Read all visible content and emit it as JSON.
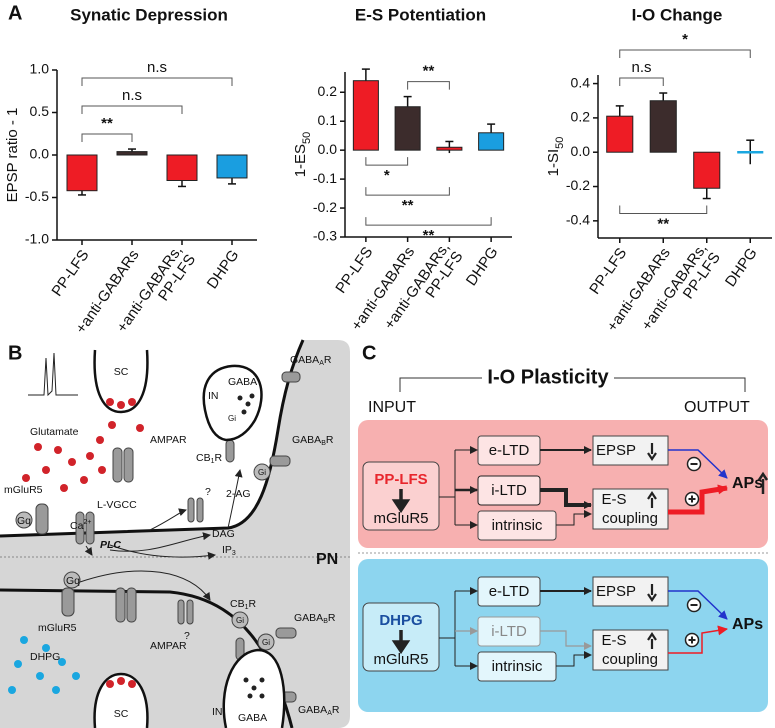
{
  "panel_labels": [
    "A",
    "B",
    "C"
  ],
  "chart_data": [
    {
      "type": "bar",
      "title": "Synatic Depression",
      "ylabel": "EPSP ratio - 1",
      "categories": [
        "PP-LFS",
        "+anti-GABARs",
        [
          "+anti-GABARs,",
          "PP-LFS"
        ],
        "DHPG"
      ],
      "values": [
        -0.42,
        0.04,
        -0.3,
        -0.27
      ],
      "errors": [
        0.05,
        0.03,
        0.07,
        0.07
      ],
      "colors": [
        "#ee1c25",
        "#3c2c2c",
        "#ee1c25",
        "#1a9ee0"
      ],
      "ylim": [
        -1,
        1
      ],
      "yticks": [
        {
          "value": -1,
          "label": "-1.0"
        },
        -0.5,
        {
          "value": 0,
          "label": "0.0"
        },
        0.5,
        {
          "value": 1,
          "label": "1.0"
        }
      ],
      "annotations": [
        {
          "from": 0,
          "to": 1,
          "label": "**",
          "side": "above"
        },
        {
          "from": 0,
          "to": 2,
          "label": "n.s",
          "side": "above"
        },
        {
          "from": 0,
          "to": 3,
          "label": "n.s",
          "side": "above"
        }
      ]
    },
    {
      "type": "bar",
      "title": "E-S Potentiation",
      "ylabel": "1-ES",
      "ylabel_subscript": "50",
      "categories": [
        "PP-LFS",
        "+anti-GABARs",
        [
          "+anti-GABARs,",
          "PP-LFS"
        ],
        "DHPG"
      ],
      "values": [
        0.24,
        0.15,
        0.01,
        0.06
      ],
      "errors": [
        0.04,
        0.035,
        0.02,
        0.03
      ],
      "colors": [
        "#ee1c25",
        "#3c2c2c",
        "#ee1c25",
        "#1a9ee0"
      ],
      "ylim": [
        -0.3,
        0.27
      ],
      "yticks": [
        -0.3,
        -0.2,
        -0.1,
        {
          "value": 0,
          "label": "0.0"
        },
        0.1,
        0.2
      ],
      "annotations": [
        {
          "from": 1,
          "to": 2,
          "label": "**",
          "side": "above"
        },
        {
          "from": 0,
          "to": 1,
          "label": "*",
          "side": "below"
        },
        {
          "from": 0,
          "to": 2,
          "label": "**",
          "side": "below"
        },
        {
          "from": 0,
          "to": 3,
          "label": "**",
          "side": "below"
        }
      ]
    },
    {
      "type": "bar",
      "title": "I-O Change",
      "ylabel": "1-SI",
      "ylabel_subscript": "50",
      "categories": [
        "PP-LFS",
        "+anti-GABARs",
        [
          "+anti-GABARs,",
          "PP-LFS"
        ],
        "DHPG"
      ],
      "values": [
        0.21,
        0.3,
        -0.21,
        0
      ],
      "errors": [
        0.06,
        0.045,
        0.06,
        0.07
      ],
      "colors": [
        "#ee1c25",
        "#3c2c2c",
        "#ee1c25",
        "#1aa7e0"
      ],
      "ylim": [
        -0.5,
        0.45
      ],
      "yticks": [
        -0.4,
        -0.2,
        {
          "value": 0,
          "label": "0.0"
        },
        0.2,
        0.4
      ],
      "annotations": [
        {
          "from": 0,
          "to": 1,
          "label": "n.s",
          "side": "above"
        },
        {
          "from": 0,
          "to": 3,
          "label": "*",
          "side": "above"
        },
        {
          "from": 0,
          "to": 2,
          "label": "**",
          "side": "below"
        }
      ]
    }
  ],
  "diagram_b": {
    "labels": [
      "SC",
      "Glutamate",
      "AMPAR",
      "mGluR5",
      "Gq",
      "L-VGCC",
      {
        "text": "Ca",
        "sup": "2+"
      },
      "PLC",
      "?",
      "2-AG",
      "DAG",
      {
        "text": "IP",
        "sub": "3"
      },
      {
        "text": "CB",
        "sub": "1",
        "after": "R"
      },
      "IN",
      "GABA",
      {
        "text": "GABA",
        "sub": "A",
        "after": "R"
      },
      {
        "text": "GABA",
        "sub": "B",
        "after": "R"
      },
      "PN",
      "Gq",
      "mGluR5",
      "DHPG",
      "AMPAR",
      "?",
      {
        "text": "CB",
        "sub": "1",
        "after": "R"
      },
      {
        "text": "GABA",
        "sub": "B",
        "after": "R"
      },
      {
        "text": "GABA",
        "sub": "A",
        "after": "R"
      },
      "IN",
      "GABA",
      "SC",
      "Gi",
      "Gi",
      "Gi",
      "Gi"
    ]
  },
  "diagram_c": {
    "title": "I-O Plasticity",
    "input": "INPUT",
    "output": "OUTPUT",
    "conditions": [
      {
        "inducer": "PP-LFS",
        "receptor": "mGluR5",
        "mechanisms": [
          "e-LTD",
          "i-LTD",
          "intrinsic"
        ],
        "epsp": "EPSP",
        "coupling": [
          "E-S",
          "coupling"
        ],
        "result": "APs"
      },
      {
        "inducer": "DHPG",
        "receptor": "mGluR5",
        "mechanisms": [
          "e-LTD",
          "i-LTD",
          "intrinsic"
        ],
        "epsp": "EPSP",
        "coupling": [
          "E-S",
          "coupling"
        ],
        "result": "APs"
      }
    ]
  }
}
